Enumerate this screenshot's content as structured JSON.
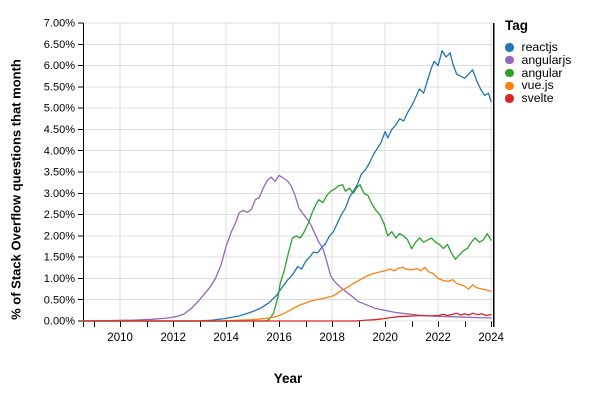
{
  "chart_data": {
    "type": "line",
    "title": "",
    "xlabel": "Year",
    "ylabel": "% of Stack Overflow questions that month",
    "legend_title": "Tag",
    "legend_position": "right",
    "grid": true,
    "xlim": [
      2008.6,
      2024.07
    ],
    "ylim": [
      0,
      7
    ],
    "x_ticks": [
      {
        "v": 2010,
        "label": "2010"
      },
      {
        "v": 2012,
        "label": "2012"
      },
      {
        "v": 2014,
        "label": "2014"
      },
      {
        "v": 2016,
        "label": "2016"
      },
      {
        "v": 2018,
        "label": "2018"
      },
      {
        "v": 2020,
        "label": "2020"
      },
      {
        "v": 2022,
        "label": "2022"
      },
      {
        "v": 2024,
        "label": "2024"
      }
    ],
    "x_minor_ticks": [
      2009,
      2010,
      2011,
      2012,
      2013,
      2014,
      2015,
      2016,
      2017,
      2018,
      2019,
      2020,
      2021,
      2022,
      2023,
      2024
    ],
    "y_ticks": [
      {
        "v": 0.0,
        "label": "0.00%"
      },
      {
        "v": 0.5,
        "label": "0.50%"
      },
      {
        "v": 1.0,
        "label": "1.00%"
      },
      {
        "v": 1.5,
        "label": "1.50%"
      },
      {
        "v": 2.0,
        "label": "2.00%"
      },
      {
        "v": 2.5,
        "label": "2.50%"
      },
      {
        "v": 3.0,
        "label": "3.00%"
      },
      {
        "v": 3.5,
        "label": "3.50%"
      },
      {
        "v": 4.0,
        "label": "4.00%"
      },
      {
        "v": 4.5,
        "label": "4.50%"
      },
      {
        "v": 5.0,
        "label": "5.00%"
      },
      {
        "v": 5.5,
        "label": "5.50%"
      },
      {
        "v": 6.0,
        "label": "6.00%"
      },
      {
        "v": 6.5,
        "label": "6.50%"
      },
      {
        "v": 7.0,
        "label": "7.00%"
      }
    ],
    "colors": {
      "grid": "#dddddd",
      "axis": "#000000",
      "text": "#000000"
    },
    "series": [
      {
        "name": "reactjs",
        "color": "#1f77b4",
        "points": [
          [
            2008.6,
            0
          ],
          [
            2012.9,
            0
          ],
          [
            2013.5,
            0.02
          ],
          [
            2014,
            0.06
          ],
          [
            2014.5,
            0.12
          ],
          [
            2015,
            0.22
          ],
          [
            2015.3,
            0.3
          ],
          [
            2015.6,
            0.42
          ],
          [
            2015.9,
            0.6
          ],
          [
            2016.1,
            0.78
          ],
          [
            2016.3,
            0.95
          ],
          [
            2016.5,
            1.08
          ],
          [
            2016.7,
            1.28
          ],
          [
            2016.85,
            1.22
          ],
          [
            2017,
            1.4
          ],
          [
            2017.15,
            1.5
          ],
          [
            2017.3,
            1.62
          ],
          [
            2017.45,
            1.6
          ],
          [
            2017.6,
            1.72
          ],
          [
            2017.75,
            1.82
          ],
          [
            2017.9,
            2.0
          ],
          [
            2018.05,
            2.1
          ],
          [
            2018.2,
            2.3
          ],
          [
            2018.35,
            2.5
          ],
          [
            2018.5,
            2.65
          ],
          [
            2018.65,
            2.9
          ],
          [
            2018.8,
            3.05
          ],
          [
            2018.95,
            3.2
          ],
          [
            2019.1,
            3.45
          ],
          [
            2019.25,
            3.55
          ],
          [
            2019.4,
            3.7
          ],
          [
            2019.55,
            3.9
          ],
          [
            2019.7,
            4.05
          ],
          [
            2019.85,
            4.2
          ],
          [
            2020,
            4.45
          ],
          [
            2020.1,
            4.3
          ],
          [
            2020.25,
            4.5
          ],
          [
            2020.4,
            4.6
          ],
          [
            2020.55,
            4.75
          ],
          [
            2020.7,
            4.7
          ],
          [
            2020.85,
            4.9
          ],
          [
            2021,
            5.05
          ],
          [
            2021.15,
            5.25
          ],
          [
            2021.3,
            5.45
          ],
          [
            2021.45,
            5.35
          ],
          [
            2021.6,
            5.65
          ],
          [
            2021.75,
            5.95
          ],
          [
            2021.85,
            6.1
          ],
          [
            2022,
            6.0
          ],
          [
            2022.15,
            6.35
          ],
          [
            2022.3,
            6.2
          ],
          [
            2022.45,
            6.3
          ],
          [
            2022.55,
            6.05
          ],
          [
            2022.7,
            5.8
          ],
          [
            2022.85,
            5.75
          ],
          [
            2023,
            5.7
          ],
          [
            2023.15,
            5.8
          ],
          [
            2023.3,
            5.9
          ],
          [
            2023.45,
            5.65
          ],
          [
            2023.6,
            5.45
          ],
          [
            2023.75,
            5.3
          ],
          [
            2023.9,
            5.35
          ],
          [
            2024,
            5.15
          ]
        ]
      },
      {
        "name": "angularjs",
        "color": "#9467bd",
        "points": [
          [
            2008.6,
            0
          ],
          [
            2009.5,
            0.01
          ],
          [
            2010.5,
            0.02
          ],
          [
            2011.2,
            0.04
          ],
          [
            2011.8,
            0.07
          ],
          [
            2012.1,
            0.1
          ],
          [
            2012.4,
            0.16
          ],
          [
            2012.7,
            0.3
          ],
          [
            2013,
            0.5
          ],
          [
            2013.4,
            0.8
          ],
          [
            2013.6,
            1.0
          ],
          [
            2013.8,
            1.3
          ],
          [
            2014,
            1.75
          ],
          [
            2014.2,
            2.1
          ],
          [
            2014.35,
            2.3
          ],
          [
            2014.5,
            2.55
          ],
          [
            2014.65,
            2.6
          ],
          [
            2014.8,
            2.55
          ],
          [
            2014.95,
            2.62
          ],
          [
            2015.1,
            2.85
          ],
          [
            2015.25,
            2.9
          ],
          [
            2015.4,
            3.12
          ],
          [
            2015.55,
            3.3
          ],
          [
            2015.7,
            3.38
          ],
          [
            2015.85,
            3.28
          ],
          [
            2016,
            3.42
          ],
          [
            2016.15,
            3.36
          ],
          [
            2016.3,
            3.3
          ],
          [
            2016.45,
            3.18
          ],
          [
            2016.6,
            2.95
          ],
          [
            2016.75,
            2.65
          ],
          [
            2016.9,
            2.52
          ],
          [
            2017.05,
            2.4
          ],
          [
            2017.2,
            2.26
          ],
          [
            2017.35,
            2.05
          ],
          [
            2017.5,
            1.85
          ],
          [
            2017.65,
            1.7
          ],
          [
            2017.8,
            1.4
          ],
          [
            2017.95,
            1.05
          ],
          [
            2018.1,
            0.92
          ],
          [
            2018.3,
            0.8
          ],
          [
            2018.5,
            0.7
          ],
          [
            2018.75,
            0.58
          ],
          [
            2019,
            0.45
          ],
          [
            2019.3,
            0.38
          ],
          [
            2019.6,
            0.3
          ],
          [
            2020,
            0.25
          ],
          [
            2020.4,
            0.2
          ],
          [
            2020.8,
            0.17
          ],
          [
            2021.2,
            0.14
          ],
          [
            2021.6,
            0.12
          ],
          [
            2022,
            0.11
          ],
          [
            2022.5,
            0.1
          ],
          [
            2023,
            0.09
          ],
          [
            2023.5,
            0.08
          ],
          [
            2024,
            0.07
          ]
        ]
      },
      {
        "name": "angular",
        "color": "#2ca02c",
        "points": [
          [
            2008.6,
            0
          ],
          [
            2015.5,
            0
          ],
          [
            2015.65,
            0.05
          ],
          [
            2015.8,
            0.2
          ],
          [
            2015.95,
            0.55
          ],
          [
            2016.05,
            0.9
          ],
          [
            2016.2,
            1.2
          ],
          [
            2016.35,
            1.6
          ],
          [
            2016.5,
            1.95
          ],
          [
            2016.65,
            2.0
          ],
          [
            2016.8,
            1.95
          ],
          [
            2016.95,
            2.1
          ],
          [
            2017.1,
            2.3
          ],
          [
            2017.25,
            2.55
          ],
          [
            2017.4,
            2.75
          ],
          [
            2017.5,
            2.85
          ],
          [
            2017.65,
            2.78
          ],
          [
            2017.8,
            2.95
          ],
          [
            2017.95,
            3.05
          ],
          [
            2018.1,
            3.1
          ],
          [
            2018.25,
            3.18
          ],
          [
            2018.4,
            3.2
          ],
          [
            2018.5,
            3.05
          ],
          [
            2018.65,
            3.12
          ],
          [
            2018.8,
            3.0
          ],
          [
            2018.95,
            3.15
          ],
          [
            2019.05,
            3.2
          ],
          [
            2019.2,
            3.0
          ],
          [
            2019.35,
            2.95
          ],
          [
            2019.5,
            2.75
          ],
          [
            2019.65,
            2.6
          ],
          [
            2019.8,
            2.5
          ],
          [
            2019.95,
            2.3
          ],
          [
            2020.1,
            2.0
          ],
          [
            2020.25,
            2.1
          ],
          [
            2020.4,
            1.95
          ],
          [
            2020.55,
            2.05
          ],
          [
            2020.7,
            2.0
          ],
          [
            2020.85,
            1.9
          ],
          [
            2021,
            1.7
          ],
          [
            2021.15,
            1.85
          ],
          [
            2021.3,
            1.95
          ],
          [
            2021.45,
            1.85
          ],
          [
            2021.6,
            1.9
          ],
          [
            2021.75,
            1.95
          ],
          [
            2021.9,
            1.85
          ],
          [
            2022.05,
            1.8
          ],
          [
            2022.2,
            1.7
          ],
          [
            2022.35,
            1.8
          ],
          [
            2022.5,
            1.6
          ],
          [
            2022.65,
            1.45
          ],
          [
            2022.8,
            1.55
          ],
          [
            2022.95,
            1.65
          ],
          [
            2023.1,
            1.7
          ],
          [
            2023.25,
            1.85
          ],
          [
            2023.4,
            1.95
          ],
          [
            2023.55,
            1.85
          ],
          [
            2023.7,
            1.9
          ],
          [
            2023.85,
            2.05
          ],
          [
            2024,
            1.9
          ]
        ]
      },
      {
        "name": "vue.js",
        "color": "#ff7f0e",
        "points": [
          [
            2008.6,
            0
          ],
          [
            2013.8,
            0
          ],
          [
            2014.5,
            0.02
          ],
          [
            2015,
            0.03
          ],
          [
            2015.5,
            0.06
          ],
          [
            2015.8,
            0.09
          ],
          [
            2016,
            0.13
          ],
          [
            2016.2,
            0.18
          ],
          [
            2016.4,
            0.25
          ],
          [
            2016.6,
            0.32
          ],
          [
            2016.8,
            0.38
          ],
          [
            2017,
            0.42
          ],
          [
            2017.2,
            0.47
          ],
          [
            2017.4,
            0.5
          ],
          [
            2017.6,
            0.52
          ],
          [
            2017.8,
            0.55
          ],
          [
            2018,
            0.58
          ],
          [
            2018.15,
            0.63
          ],
          [
            2018.3,
            0.7
          ],
          [
            2018.45,
            0.75
          ],
          [
            2018.6,
            0.8
          ],
          [
            2018.8,
            0.88
          ],
          [
            2019,
            0.95
          ],
          [
            2019.2,
            1.02
          ],
          [
            2019.4,
            1.08
          ],
          [
            2019.6,
            1.12
          ],
          [
            2019.8,
            1.15
          ],
          [
            2020,
            1.18
          ],
          [
            2020.2,
            1.22
          ],
          [
            2020.35,
            1.18
          ],
          [
            2020.5,
            1.24
          ],
          [
            2020.65,
            1.26
          ],
          [
            2020.8,
            1.22
          ],
          [
            2021,
            1.2
          ],
          [
            2021.2,
            1.23
          ],
          [
            2021.35,
            1.18
          ],
          [
            2021.5,
            1.26
          ],
          [
            2021.65,
            1.15
          ],
          [
            2021.8,
            1.12
          ],
          [
            2022,
            1.0
          ],
          [
            2022.2,
            0.95
          ],
          [
            2022.4,
            0.93
          ],
          [
            2022.55,
            0.97
          ],
          [
            2022.7,
            0.88
          ],
          [
            2022.85,
            0.85
          ],
          [
            2023,
            0.82
          ],
          [
            2023.15,
            0.75
          ],
          [
            2023.3,
            0.85
          ],
          [
            2023.45,
            0.78
          ],
          [
            2023.6,
            0.76
          ],
          [
            2023.8,
            0.73
          ],
          [
            2024,
            0.7
          ]
        ]
      },
      {
        "name": "svelte",
        "color": "#d62728",
        "points": [
          [
            2008.6,
            0
          ],
          [
            2018.9,
            0
          ],
          [
            2019.3,
            0.02
          ],
          [
            2019.6,
            0.03
          ],
          [
            2019.9,
            0.05
          ],
          [
            2020.2,
            0.08
          ],
          [
            2020.5,
            0.1
          ],
          [
            2020.8,
            0.11
          ],
          [
            2021.1,
            0.12
          ],
          [
            2021.4,
            0.13
          ],
          [
            2021.7,
            0.12
          ],
          [
            2022,
            0.13
          ],
          [
            2022.2,
            0.16
          ],
          [
            2022.35,
            0.13
          ],
          [
            2022.5,
            0.15
          ],
          [
            2022.7,
            0.18
          ],
          [
            2022.85,
            0.14
          ],
          [
            2023,
            0.17
          ],
          [
            2023.15,
            0.14
          ],
          [
            2023.3,
            0.18
          ],
          [
            2023.5,
            0.15
          ],
          [
            2023.65,
            0.17
          ],
          [
            2023.8,
            0.13
          ],
          [
            2024,
            0.15
          ]
        ]
      }
    ]
  }
}
